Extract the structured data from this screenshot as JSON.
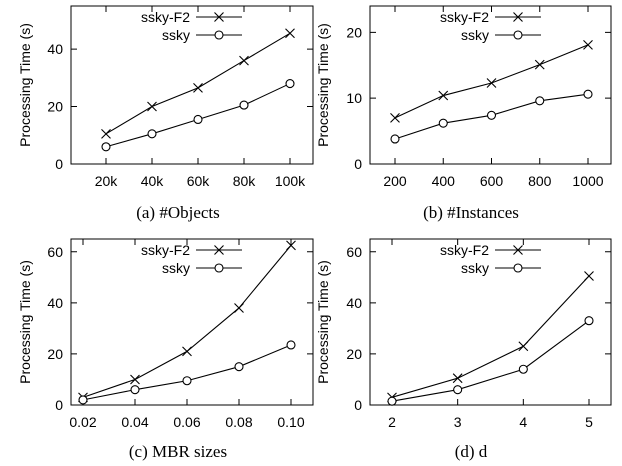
{
  "chart_data": [
    {
      "type": "line",
      "caption": "(a)  #Objects",
      "ylabel": "Processing Time (s)",
      "categories": [
        "20k",
        "40k",
        "60k",
        "80k",
        "100k"
      ],
      "yticks": [
        0,
        20,
        40
      ],
      "ylim": [
        0,
        55
      ],
      "legend": "top-left",
      "series": [
        {
          "name": "ssky-F2",
          "marker": "x",
          "values": [
            10.5,
            20,
            26.5,
            36,
            45.5
          ]
        },
        {
          "name": "ssky",
          "marker": "o",
          "values": [
            6,
            10.5,
            15.5,
            20.5,
            28
          ]
        }
      ]
    },
    {
      "type": "line",
      "caption": "(b)  #Instances",
      "ylabel": "Processing Time (s)",
      "categories": [
        "200",
        "400",
        "600",
        "800",
        "1000"
      ],
      "yticks": [
        0,
        10,
        20
      ],
      "ylim": [
        0,
        24
      ],
      "legend": "top-left",
      "series": [
        {
          "name": "ssky-F2",
          "marker": "x",
          "values": [
            7,
            10.4,
            12.3,
            15.1,
            18.1
          ]
        },
        {
          "name": "ssky",
          "marker": "o",
          "values": [
            3.8,
            6.2,
            7.4,
            9.6,
            10.6
          ]
        }
      ]
    },
    {
      "type": "line",
      "caption": "(c)  MBR  sizes",
      "ylabel": "Processing Time (s)",
      "categories": [
        "0.02",
        "0.04",
        "0.06",
        "0.08",
        "0.10"
      ],
      "yticks": [
        0,
        20,
        40,
        60
      ],
      "ylim": [
        0,
        65
      ],
      "legend": "top-left",
      "series": [
        {
          "name": "ssky-F2",
          "marker": "x",
          "values": [
            3,
            10,
            21,
            38,
            62.5
          ]
        },
        {
          "name": "ssky",
          "marker": "o",
          "values": [
            2,
            6,
            9.5,
            15,
            23.5
          ]
        }
      ]
    },
    {
      "type": "line",
      "caption": "(d)  d",
      "ylabel": "Processing Time (s)",
      "categories": [
        "2",
        "3",
        "4",
        "5"
      ],
      "yticks": [
        0,
        20,
        40,
        60
      ],
      "ylim": [
        0,
        65
      ],
      "legend": "top-left",
      "series": [
        {
          "name": "ssky-F2",
          "marker": "x",
          "values": [
            3,
            10.5,
            23,
            50.5
          ]
        },
        {
          "name": "ssky",
          "marker": "o",
          "values": [
            1.5,
            6,
            14,
            33
          ]
        }
      ]
    }
  ]
}
